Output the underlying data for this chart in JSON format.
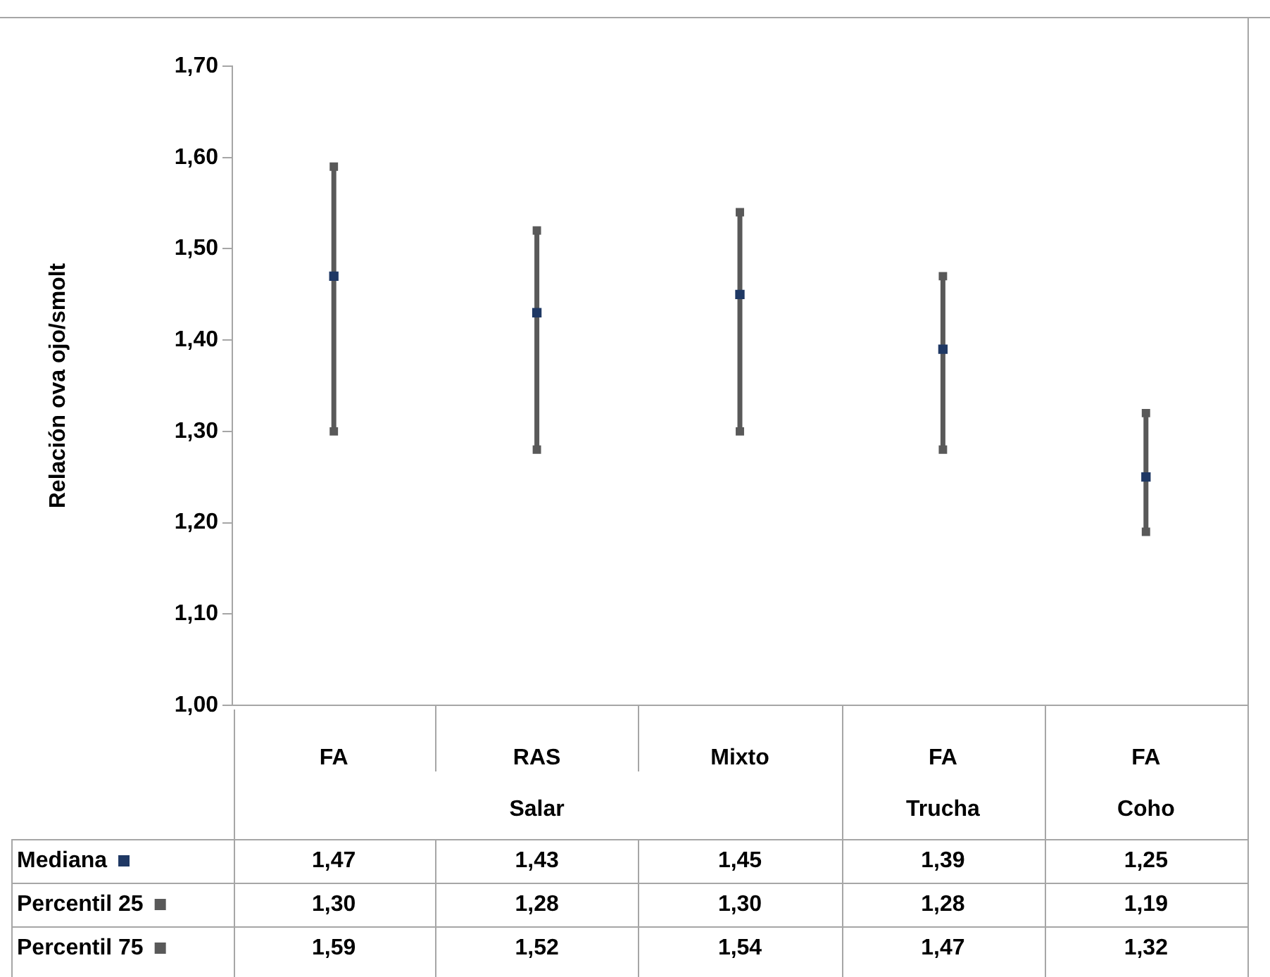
{
  "chart_data": {
    "type": "scatter",
    "ylabel": "Relación ova ojo/smolt",
    "categories": [
      "FA",
      "RAS",
      "Mixto",
      "FA",
      "FA"
    ],
    "series": [
      {
        "name": "Mediana",
        "color": "#1f3864",
        "values": [
          1.47,
          1.43,
          1.45,
          1.39,
          1.25
        ],
        "value_labels": [
          "1,47",
          "1,43",
          "1,45",
          "1,39",
          "1,25"
        ],
        "marker": "square"
      },
      {
        "name": "Percentil 25",
        "color": "#595959",
        "marker": "square",
        "values": [
          1.3,
          1.28,
          1.3,
          1.28,
          1.19
        ],
        "value_labels": [
          "1,30",
          "1,28",
          "1,30",
          "1,28",
          "1,19"
        ]
      },
      {
        "name": "Percentil 75",
        "color": "#595959",
        "marker": "square",
        "values": [
          1.59,
          1.52,
          1.54,
          1.47,
          1.32
        ],
        "value_labels": [
          "1,59",
          "1,52",
          "1,54",
          "1,47",
          "1,32"
        ]
      }
    ],
    "ylim": [
      1.0,
      1.7
    ],
    "yticks": [
      {
        "value": 1.0,
        "label": "1,00"
      },
      {
        "value": 1.1,
        "label": "1,10"
      },
      {
        "value": 1.2,
        "label": "1,20"
      },
      {
        "value": 1.3,
        "label": "1,30"
      },
      {
        "value": 1.4,
        "label": "1,40"
      },
      {
        "value": 1.5,
        "label": "1,50"
      },
      {
        "value": 1.6,
        "label": "1,60"
      },
      {
        "value": 1.7,
        "label": "1,70"
      }
    ],
    "annotations": [
      "Salar",
      "Trucha",
      "Coho"
    ],
    "grid": false,
    "legend": "bottom left"
  }
}
